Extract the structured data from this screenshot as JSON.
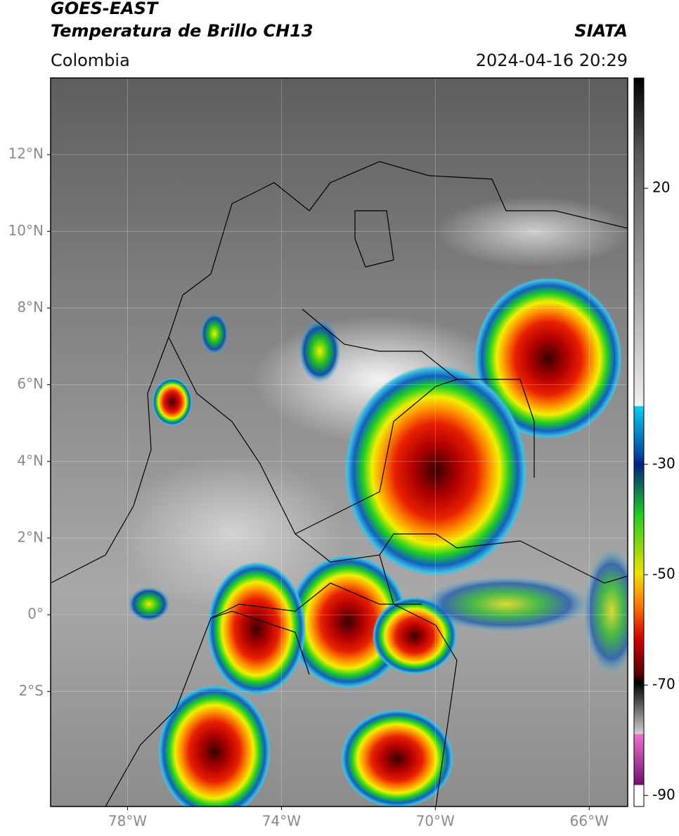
{
  "header": {
    "satellite": "GOES-EAST",
    "product": "Temperatura de Brillo CH13",
    "source": "SIATA",
    "region": "Colombia",
    "datetime": "2024-04-16 20:29"
  },
  "map": {
    "lonlim": [
      -80,
      -65
    ],
    "latlim": [
      -5,
      14
    ],
    "lon_ticks": [
      {
        "value": -78,
        "label": "78°W"
      },
      {
        "value": -74,
        "label": "74°W"
      },
      {
        "value": -70,
        "label": "70°W"
      },
      {
        "value": -66,
        "label": "66°W"
      }
    ],
    "lat_ticks": [
      {
        "value": 12,
        "label": "12°N"
      },
      {
        "value": 10,
        "label": "10°N"
      },
      {
        "value": 8,
        "label": "8°N"
      },
      {
        "value": 6,
        "label": "6°N"
      },
      {
        "value": 4,
        "label": "4°N"
      },
      {
        "value": 2,
        "label": "2°N"
      },
      {
        "value": 0,
        "label": "0°"
      },
      {
        "value": -2,
        "label": "2°S"
      }
    ],
    "grid": true
  },
  "colorbar": {
    "lim": [
      -92,
      40
    ],
    "ticks": [
      20,
      -30,
      -50,
      -70,
      -90
    ]
  }
}
